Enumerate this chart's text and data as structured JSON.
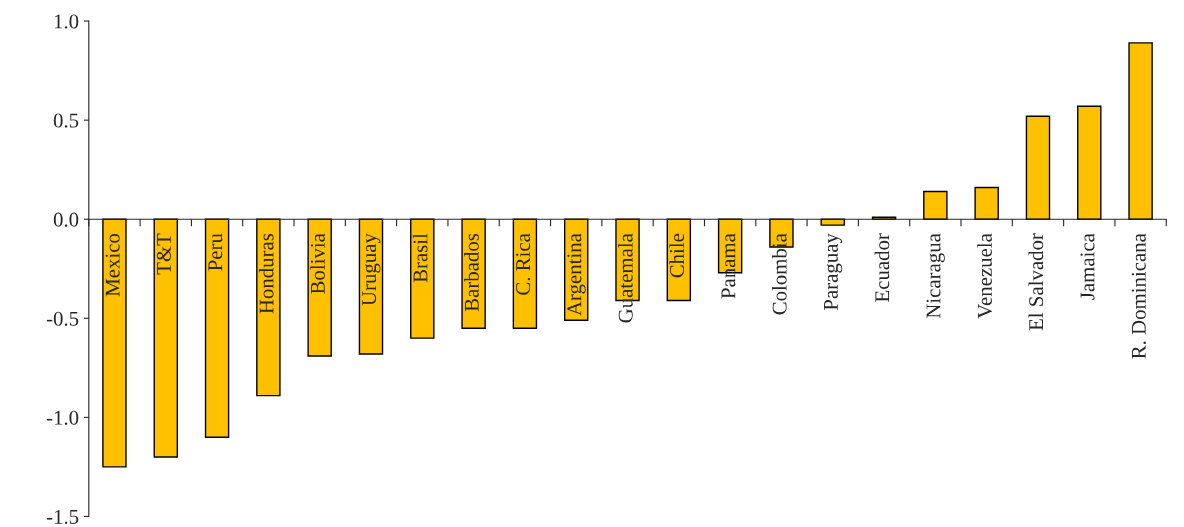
{
  "chart_data": {
    "type": "bar",
    "categories": [
      "Mexico",
      "T&T",
      "Peru",
      "Honduras",
      "Bolivia",
      "Uruguay",
      "Brasil",
      "Barbados",
      "C. Rica",
      "Argentina",
      "Guatemala",
      "Chile",
      "Panama",
      "Colombia",
      "Paraguay",
      "Ecuador",
      "Nicaragua",
      "Venezuela",
      "El Salvador",
      "Jamaica",
      "R. Dominicana"
    ],
    "values": [
      -1.25,
      -1.2,
      -1.1,
      -0.89,
      -0.69,
      -0.68,
      -0.6,
      -0.55,
      -0.55,
      -0.51,
      -0.41,
      -0.41,
      -0.27,
      -0.14,
      -0.03,
      0.01,
      0.14,
      0.16,
      0.52,
      0.57,
      0.89
    ],
    "color": "#ffc000",
    "ylim": [
      -1.5,
      1.0
    ],
    "yticks": [
      {
        "value": -1.5,
        "label": "-1.5"
      },
      {
        "value": -1.0,
        "label": "-1.0"
      },
      {
        "value": -0.5,
        "label": "-0.5"
      },
      {
        "value": 0.0,
        "label": "0.0"
      },
      {
        "value": 0.5,
        "label": "0.5"
      },
      {
        "value": 1.0,
        "label": "1.0"
      }
    ],
    "grid": false,
    "legend": false
  }
}
